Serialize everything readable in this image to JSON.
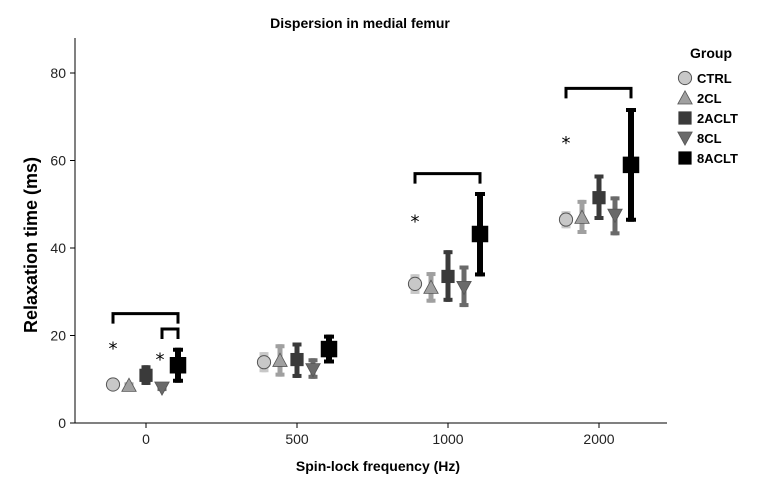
{
  "chart_data": {
    "type": "scatter",
    "title": "Dispersion in medial femur",
    "xlabel": "Spin-lock frequency (Hz)",
    "ylabel": "Relaxation time (ms)",
    "ylim": [
      0,
      88
    ],
    "yticks": [
      0,
      20,
      40,
      60,
      80
    ],
    "categories": [
      "0",
      "500",
      "1000",
      "2000"
    ],
    "legend_title": "Group",
    "legend_position": "right",
    "grid": false,
    "series": [
      {
        "name": "CTRL",
        "marker": "circle",
        "color": "#c8c8c8",
        "values": [
          8.8,
          13.9,
          31.8,
          46.5
        ],
        "lower": [
          7.8,
          11.6,
          29.5,
          44.5
        ],
        "upper": [
          10.0,
          16.2,
          34.0,
          48.4
        ]
      },
      {
        "name": "2CL",
        "marker": "triangle-up",
        "color": "#a0a0a0",
        "values": [
          8.6,
          14.3,
          31.0,
          47.0
        ],
        "lower": [
          8.0,
          10.6,
          27.5,
          43.2
        ],
        "upper": [
          9.3,
          18.0,
          34.5,
          51.0
        ]
      },
      {
        "name": "2ACLT",
        "marker": "square",
        "color": "#3a3a3a",
        "values": [
          10.9,
          14.5,
          33.5,
          51.5
        ],
        "lower": [
          8.7,
          10.3,
          27.7,
          46.4
        ],
        "upper": [
          13.2,
          18.4,
          39.5,
          56.8
        ]
      },
      {
        "name": "8CL",
        "marker": "triangle-down",
        "color": "#6a6a6a",
        "values": [
          8.0,
          12.2,
          31.0,
          47.5
        ],
        "lower": [
          7.3,
          10.1,
          26.5,
          42.9
        ],
        "upper": [
          8.8,
          14.8,
          36.0,
          51.8
        ]
      },
      {
        "name": "8ACLT",
        "marker": "square",
        "color": "#000000",
        "values": [
          13.2,
          16.9,
          43.2,
          59.0
        ],
        "lower": [
          9.2,
          13.6,
          33.5,
          46.0
        ],
        "upper": [
          17.2,
          20.2,
          52.8,
          72.0
        ]
      }
    ],
    "annotations": [
      {
        "text": "*",
        "category": "0",
        "y": 17.5
      },
      {
        "text": "*",
        "category": "0",
        "y": 15.0
      },
      {
        "text": "*",
        "category": "1000",
        "y": 46.5
      },
      {
        "text": "*",
        "category": "2000",
        "y": 64.5
      }
    ],
    "significance_brackets": [
      {
        "category": "0",
        "from_series": "CTRL",
        "to_series": "8ACLT",
        "y": 25.0
      },
      {
        "category": "0",
        "from_series": "8CL",
        "to_series": "8ACLT",
        "y": 21.5
      },
      {
        "category": "1000",
        "from_series": "CTRL",
        "to_series": "8ACLT",
        "y": 57.0
      },
      {
        "category": "2000",
        "from_series": "CTRL",
        "to_series": "8ACLT",
        "y": 76.5
      }
    ]
  }
}
